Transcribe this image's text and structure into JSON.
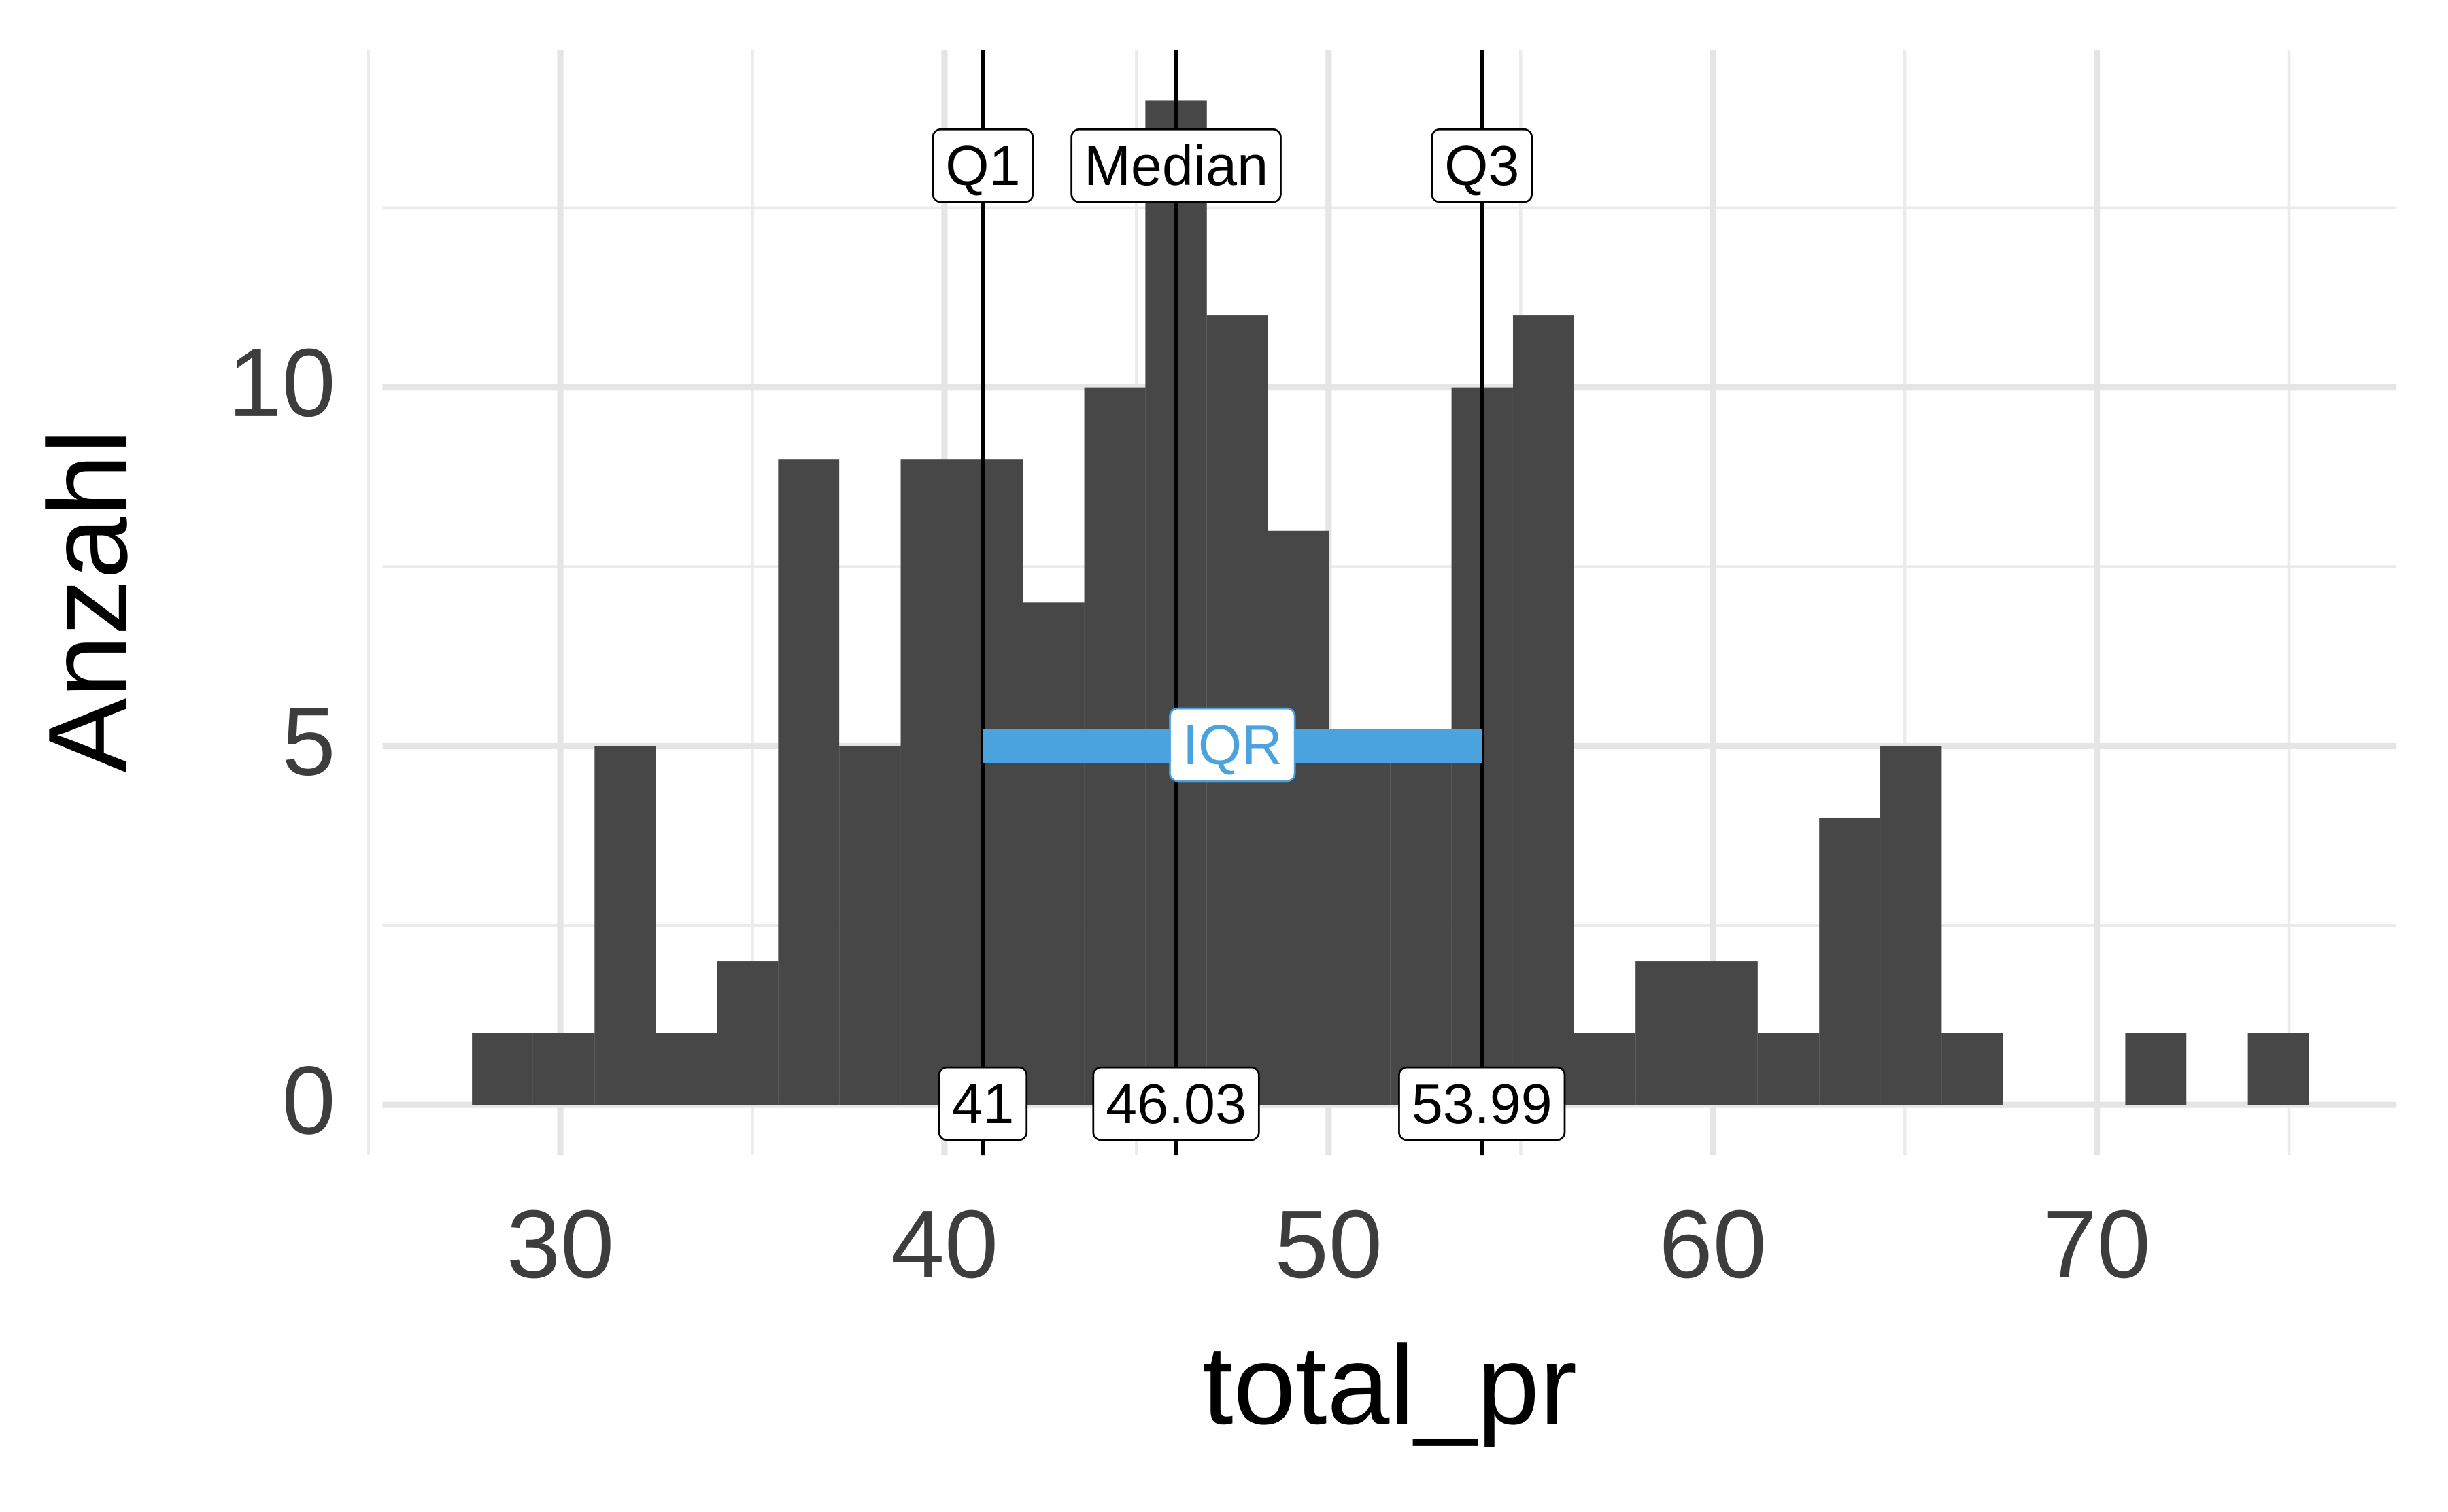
{
  "chart_data": {
    "type": "histogram",
    "x_label": "total_pr",
    "y_label": "Anzahl",
    "bins": [
      27.7,
      29.29,
      30.89,
      32.48,
      34.08,
      35.67,
      37.26,
      38.86,
      40.45,
      42.05,
      43.64,
      45.23,
      46.83,
      48.42,
      50.02,
      51.61,
      53.2,
      54.8,
      56.39,
      57.99,
      59.58,
      61.17,
      62.77,
      64.36,
      65.96,
      67.55,
      69.14,
      70.74,
      72.33,
      73.93,
      75.52
    ],
    "counts": [
      1,
      1,
      5,
      1,
      2,
      9,
      5,
      9,
      9,
      7,
      10,
      14,
      11,
      8,
      5,
      5,
      10,
      11,
      1,
      2,
      2,
      1,
      4,
      5,
      1,
      0,
      0,
      1,
      0,
      1
    ],
    "color": "#474747",
    "xlim": [
      25.37,
      77.8
    ],
    "ylim": [
      -0.7,
      14.7
    ],
    "xticks": [
      30,
      40,
      50,
      60,
      70
    ],
    "yticks": [
      0,
      5,
      10
    ],
    "x_minor_ticks": [
      25,
      35,
      45,
      55,
      65,
      75
    ],
    "y_minor_ticks": [
      2.5,
      7.5,
      12.5
    ],
    "grid": true,
    "quantiles": [
      {
        "name": "Q1",
        "value": 41
      },
      {
        "name": "Median",
        "value": 46.03
      },
      {
        "name": "Q3",
        "value": 53.99
      }
    ],
    "iqr": {
      "label": "IQR",
      "color": "#4aa3df"
    }
  }
}
